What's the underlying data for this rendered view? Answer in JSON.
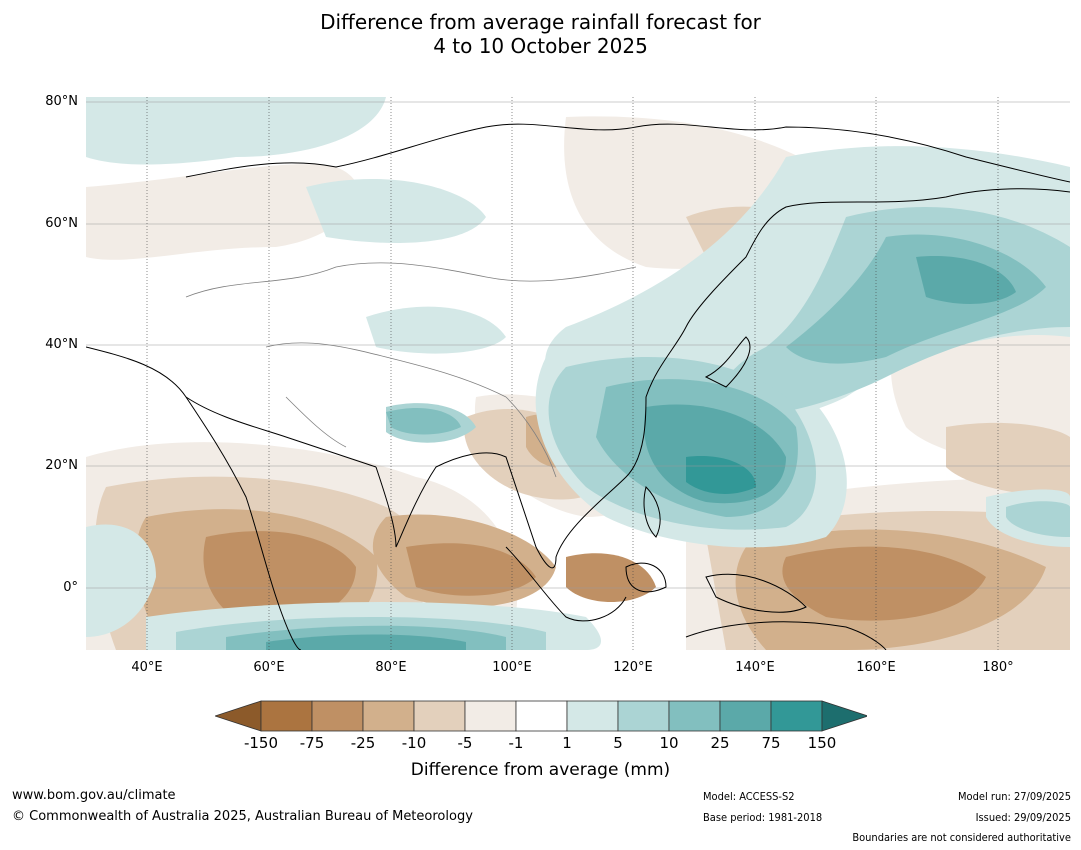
{
  "title": {
    "line1": "Difference from average rainfall forecast for",
    "line2": "4 to 10 October 2025"
  },
  "lat_labels": [
    "80°N",
    "60°N",
    "40°N",
    "20°N",
    "0°"
  ],
  "lon_labels": [
    "40°E",
    "60°E",
    "80°E",
    "100°E",
    "120°E",
    "140°E",
    "160°E",
    "180°"
  ],
  "colorbar": {
    "title": "Difference from average (mm)",
    "ticks": [
      "-150",
      "-75",
      "-25",
      "-10",
      "-5",
      "-1",
      "1",
      "5",
      "10",
      "25",
      "75",
      "150"
    ],
    "colors": [
      "#8c5a2a",
      "#ab7440",
      "#bf9064",
      "#d2b08c",
      "#e3d0bc",
      "#f2ece6",
      "#ffffff",
      "#d4e8e7",
      "#abd4d4",
      "#82bfbf",
      "#5ba9a9",
      "#329897",
      "#1d6e6e"
    ]
  },
  "map": {
    "ocean_color": "#ffffff",
    "boundary_color": "#808080",
    "coast_color": "#000000"
  },
  "footer": {
    "url": "www.bom.gov.au/climate",
    "copyright": "© Commonwealth of Australia 2025, Australian Bureau of Meteorology",
    "model": "Model: ACCESS-S2",
    "base_period": "Base period: 1981-2018",
    "model_run": "Model run: 27/09/2025",
    "issued": "Issued: 29/09/2025",
    "disclaimer": "Boundaries are not considered authoritative"
  }
}
